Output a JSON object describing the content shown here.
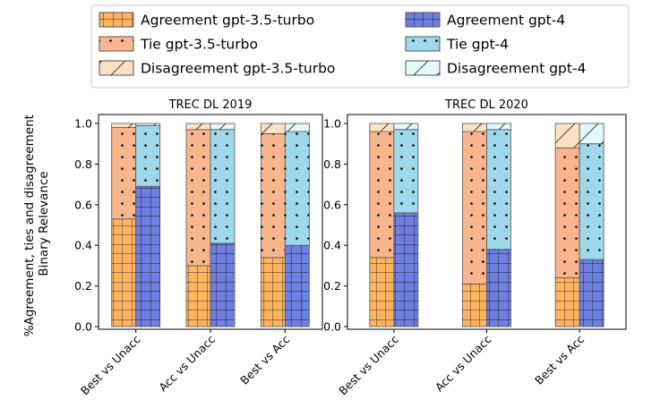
{
  "chart_data": {
    "type": "bar",
    "stacked": true,
    "ylabel": "%Agreement, ties and disagreement\nBinary Relevance",
    "ylim": [
      0,
      1.0
    ],
    "yticks": [
      "0.0",
      "0.2",
      "0.4",
      "0.6",
      "0.8",
      "1.0"
    ],
    "categories": [
      "Best vs Unacc",
      "Acc vs Unacc",
      "Best vs Acc"
    ],
    "colors": {
      "agree35": "#fdb462",
      "tie35": "#f8b68e",
      "dis35": "#fde1c3",
      "agree4": "#6f7fe0",
      "tie4": "#9fd8eb",
      "dis4": "#e4f7fb"
    },
    "legend": [
      {
        "key": "agree35",
        "label": "Agreement gpt-3.5-turbo",
        "hatch": "grid"
      },
      {
        "key": "agree4",
        "label": "Agreement gpt-4",
        "hatch": "grid"
      },
      {
        "key": "tie35",
        "label": "Tie gpt-3.5-turbo",
        "hatch": "dots"
      },
      {
        "key": "tie4",
        "label": "Tie gpt-4",
        "hatch": "dots"
      },
      {
        "key": "dis35",
        "label": "Disagreement gpt-3.5-turbo",
        "hatch": "slash"
      },
      {
        "key": "dis4",
        "label": "Disagreement gpt-4",
        "hatch": "slash"
      }
    ],
    "panels": [
      {
        "title": "TREC DL 2019",
        "gpt35": {
          "agreement": [
            0.53,
            0.3,
            0.34
          ],
          "tie": [
            0.45,
            0.67,
            0.61
          ],
          "disagreement": [
            0.02,
            0.03,
            0.05
          ]
        },
        "gpt4": {
          "agreement": [
            0.69,
            0.41,
            0.4
          ],
          "tie": [
            0.3,
            0.56,
            0.56
          ],
          "disagreement": [
            0.01,
            0.03,
            0.04
          ]
        }
      },
      {
        "title": "TREC DL 2020",
        "gpt35": {
          "agreement": [
            0.34,
            0.21,
            0.24
          ],
          "tie": [
            0.62,
            0.75,
            0.64
          ],
          "disagreement": [
            0.04,
            0.04,
            0.12
          ]
        },
        "gpt4": {
          "agreement": [
            0.56,
            0.38,
            0.33
          ],
          "tie": [
            0.41,
            0.59,
            0.57
          ],
          "disagreement": [
            0.03,
            0.03,
            0.1
          ]
        }
      }
    ]
  }
}
